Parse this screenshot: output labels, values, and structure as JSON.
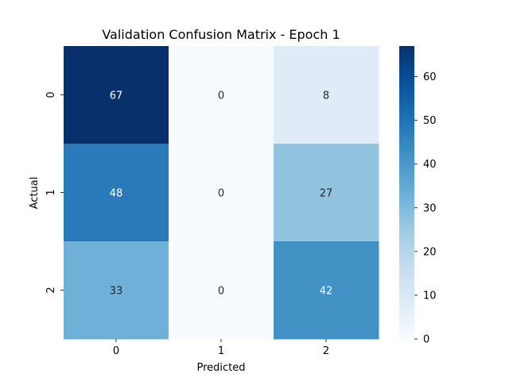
{
  "chart_data": {
    "type": "heatmap",
    "title": "Validation Confusion Matrix - Epoch 1",
    "xlabel": "Predicted",
    "ylabel": "Actual",
    "x_categories": [
      "0",
      "1",
      "2"
    ],
    "y_categories": [
      "0",
      "1",
      "2"
    ],
    "values": [
      [
        67,
        0,
        8
      ],
      [
        48,
        0,
        27
      ],
      [
        33,
        0,
        42
      ]
    ],
    "color_scale": "Blues",
    "colorbar": {
      "min": 0,
      "max": 67,
      "ticks": [
        0,
        10,
        20,
        30,
        40,
        50,
        60
      ],
      "tick_labels": [
        "0",
        "10",
        "20",
        "30",
        "40",
        "50",
        "60"
      ]
    },
    "annotations": true,
    "grid": false
  }
}
